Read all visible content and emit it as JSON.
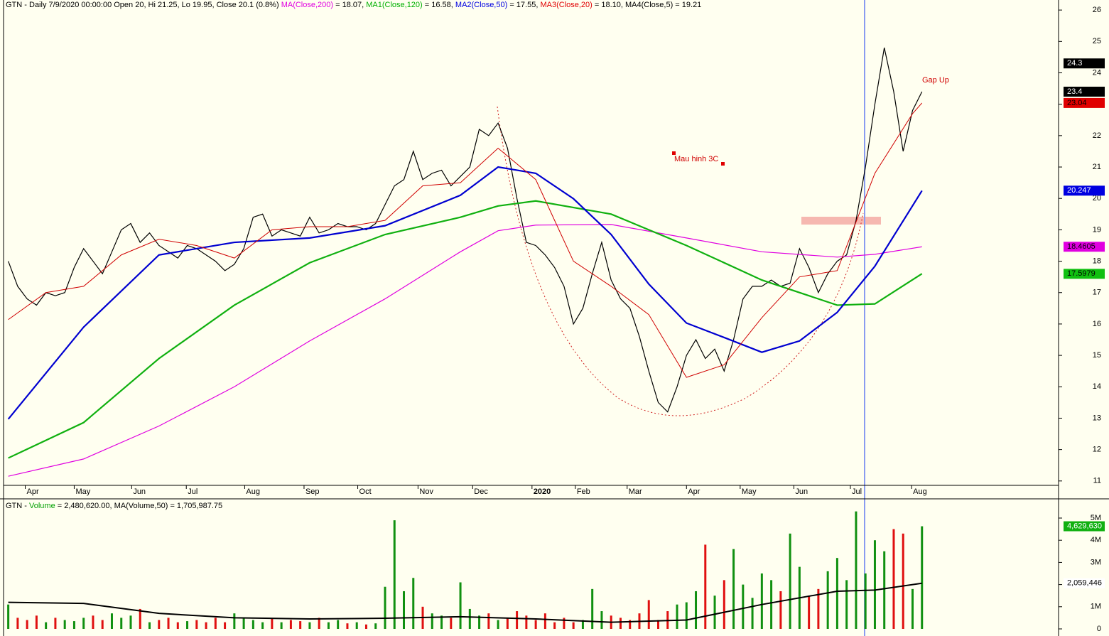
{
  "chart_data": [
    {
      "type": "line",
      "header": [
        {
          "text": "GTN - Daily 7/9/2020 00:00:00 Open 20, Hi 21.25, Lo 19.95, Close 20.1 (0.8%) ",
          "color": "#000000"
        },
        {
          "text": "MA(Close,200)",
          "color": "#e000e0"
        },
        {
          "text": " = 18.07, ",
          "color": "#000000"
        },
        {
          "text": "MA1(Close,120)",
          "color": "#00b000"
        },
        {
          "text": " = 16.58, ",
          "color": "#000000"
        },
        {
          "text": "MA2(Close,50)",
          "color": "#0000e0"
        },
        {
          "text": " = 17.55, ",
          "color": "#000000"
        },
        {
          "text": "MA3(Close,20)",
          "color": "#e00000"
        },
        {
          "text": " = 18.10, ",
          "color": "#000000"
        },
        {
          "text": "MA4(Close,5) = 19.21",
          "color": "#000000"
        }
      ],
      "annotations": [
        "Mau hinh 3C",
        "Gap Up"
      ],
      "xlim": [
        -0.5,
        111.5
      ],
      "xticks": [
        {
          "value": 1.8,
          "label": "Apr"
        },
        {
          "value": 7.0,
          "label": "May"
        },
        {
          "value": 13.1,
          "label": "Jun"
        },
        {
          "value": 18.9,
          "label": "Jul"
        },
        {
          "value": 25.1,
          "label": "Aug"
        },
        {
          "value": 31.4,
          "label": "Sep"
        },
        {
          "value": 37.1,
          "label": "Oct"
        },
        {
          "value": 43.5,
          "label": "Nov"
        },
        {
          "value": 49.3,
          "label": "Dec"
        },
        {
          "value": 55.6,
          "label": "2020"
        },
        {
          "value": 60.2,
          "label": "Feb"
        },
        {
          "value": 65.7,
          "label": "Mar"
        },
        {
          "value": 72.0,
          "label": "Apr"
        },
        {
          "value": 77.7,
          "label": "May"
        },
        {
          "value": 83.4,
          "label": "Jun"
        },
        {
          "value": 89.4,
          "label": "Jul"
        },
        {
          "value": 95.9,
          "label": "Aug"
        }
      ],
      "ylim": [
        10.86,
        26.32
      ],
      "yticks": [
        11,
        12,
        13,
        14,
        15,
        16,
        17,
        18,
        19,
        20,
        21,
        22,
        23,
        24,
        25,
        26
      ],
      "series": [
        {
          "color": "#000000",
          "width": 1.2,
          "x": [
            0,
            1,
            2,
            3,
            4,
            5,
            6,
            7,
            8,
            9,
            10,
            11,
            12,
            13,
            14,
            15,
            16,
            17,
            18,
            19,
            20,
            21,
            22,
            23,
            24,
            25,
            26,
            27,
            28,
            29,
            30,
            31,
            32,
            33,
            34,
            35,
            36,
            37,
            38,
            39,
            40,
            41,
            42,
            43,
            44,
            45,
            46,
            47,
            48,
            49,
            50,
            51,
            52,
            53,
            54,
            55,
            56,
            57,
            58,
            59,
            60,
            61,
            62,
            63,
            64,
            65,
            66,
            67,
            68,
            69,
            70,
            71,
            72,
            73,
            74,
            75,
            76,
            77,
            78,
            79,
            80,
            81,
            82,
            83,
            84,
            85,
            86,
            87,
            88,
            89,
            90,
            91,
            92,
            93,
            94,
            95,
            96,
            97
          ],
          "values": [
            18.0,
            17.2,
            16.8,
            16.6,
            17.0,
            16.9,
            17.0,
            17.8,
            18.4,
            18.0,
            17.6,
            18.3,
            19.0,
            19.2,
            18.6,
            18.9,
            18.5,
            18.3,
            18.1,
            18.5,
            18.4,
            18.2,
            18.0,
            17.7,
            17.9,
            18.4,
            19.4,
            19.5,
            18.8,
            19.0,
            18.9,
            18.8,
            19.4,
            18.9,
            19.0,
            19.2,
            19.1,
            19.1,
            19.0,
            19.2,
            19.8,
            20.4,
            20.6,
            21.5,
            20.6,
            20.8,
            20.9,
            20.4,
            20.7,
            21.0,
            22.2,
            22.0,
            22.4,
            21.6,
            20.0,
            18.6,
            18.5,
            18.2,
            17.8,
            17.2,
            16.0,
            16.5,
            17.6,
            18.6,
            17.4,
            16.8,
            16.5,
            15.6,
            14.5,
            13.5,
            13.2,
            14.0,
            15.0,
            15.5,
            14.9,
            15.2,
            14.5,
            15.5,
            16.8,
            17.2,
            17.2,
            17.4,
            17.2,
            17.3,
            18.4,
            17.8,
            17.0,
            17.6,
            18.0,
            18.2,
            19.3,
            21.0,
            23.0,
            24.8,
            23.4,
            21.5,
            22.8,
            23.4
          ]
        },
        {
          "color": "#e000e0",
          "width": 1.2,
          "x": [
            0,
            8,
            16,
            24,
            32,
            40,
            48,
            52,
            56,
            64,
            72,
            80,
            88,
            92,
            97
          ],
          "values": [
            11.15,
            11.7,
            12.75,
            14.0,
            15.46,
            16.8,
            18.3,
            18.97,
            19.15,
            19.17,
            18.74,
            18.3,
            18.13,
            18.22,
            18.46
          ]
        },
        {
          "color": "#10b010",
          "width": 2.2,
          "x": [
            0,
            8,
            16,
            24,
            32,
            40,
            48,
            52,
            56,
            64,
            72,
            80,
            88,
            92,
            97
          ],
          "values": [
            11.73,
            12.86,
            14.9,
            16.6,
            17.95,
            18.85,
            19.4,
            19.76,
            19.92,
            19.5,
            18.5,
            17.4,
            16.6,
            16.64,
            17.6
          ]
        },
        {
          "color": "#0000d0",
          "width": 2.2,
          "x": [
            0,
            8,
            16,
            24,
            32,
            40,
            48,
            52,
            56,
            60,
            64,
            68,
            72,
            76,
            80,
            84,
            88,
            92,
            97
          ],
          "values": [
            12.97,
            15.9,
            18.2,
            18.6,
            18.74,
            19.13,
            20.1,
            21.0,
            20.8,
            19.99,
            18.85,
            17.27,
            16.03,
            15.57,
            15.1,
            15.46,
            16.37,
            17.84,
            20.247
          ]
        },
        {
          "color": "#d00000",
          "width": 1,
          "x": [
            0,
            4,
            8,
            12,
            16,
            20,
            24,
            28,
            32,
            36,
            40,
            44,
            48,
            52,
            56,
            60,
            64,
            68,
            72,
            76,
            80,
            84,
            88,
            92,
            96,
            97
          ],
          "values": [
            16.14,
            17.0,
            17.2,
            18.2,
            18.7,
            18.5,
            18.1,
            19.0,
            19.1,
            19.1,
            19.3,
            20.4,
            20.5,
            21.6,
            20.6,
            18.0,
            17.2,
            16.3,
            14.3,
            14.7,
            16.2,
            17.5,
            17.7,
            20.8,
            22.7,
            23.04
          ]
        }
      ],
      "last_values": [
        {
          "value": 24.3,
          "color": "#000000",
          "text_color": "#ffffff"
        },
        {
          "value": 23.4,
          "color": "#000000",
          "text_color": "#ffffff"
        },
        {
          "value": 23.04,
          "color": "#e00000",
          "text_color": "#000000"
        },
        {
          "value": 20.247,
          "color": "#0000e0",
          "text_color": "#ffffff"
        },
        {
          "value": 18.4605,
          "color": "#e000e0",
          "text_color": "#000000"
        },
        {
          "value": 17.5979,
          "color": "#10c010",
          "text_color": "#000000"
        }
      ]
    },
    {
      "type": "bar",
      "header": [
        {
          "text": "GTN - ",
          "color": "#000000"
        },
        {
          "text": "Volume",
          "color": "#00a000"
        },
        {
          "text": " = 2,480,620.00, MA(Volume,50) = 1,705,987.75",
          "color": "#000000"
        }
      ],
      "xlim": [
        -0.5,
        111.5
      ],
      "ylim": [
        -96000,
        5770000
      ],
      "yticks": [
        0,
        {
          "value": 1000000,
          "label": "1M"
        },
        {
          "value": 2000000,
          "label": "2M"
        },
        {
          "value": 3000000,
          "label": "3M"
        },
        {
          "value": 4000000,
          "label": "4M"
        },
        {
          "value": 5000000,
          "label": "5M"
        }
      ],
      "up_color": "#109010",
      "down_color": "#e01010",
      "values": [
        1100000,
        500000,
        400000,
        600000,
        300000,
        500000,
        400000,
        350000,
        500000,
        600000,
        400000,
        700000,
        500000,
        600000,
        900000,
        300000,
        400000,
        500000,
        300000,
        350000,
        400000,
        300000,
        500000,
        300000,
        700000,
        500000,
        400000,
        300000,
        450000,
        300000,
        400000,
        350000,
        300000,
        500000,
        300000,
        400000,
        250000,
        300000,
        200000,
        250000,
        1900000,
        4900000,
        1700000,
        2300000,
        1000000,
        700000,
        600000,
        500000,
        2100000,
        900000,
        600000,
        700000,
        400000,
        500000,
        800000,
        600000,
        400000,
        700000,
        300000,
        500000,
        300000,
        400000,
        1800000,
        800000,
        600000,
        500000,
        400000,
        700000,
        1300000,
        400000,
        800000,
        1100000,
        1200000,
        1700000,
        3800000,
        1500000,
        2200000,
        3600000,
        2000000,
        1400000,
        2500000,
        2200000,
        1700000,
        4300000,
        2800000,
        1500000,
        1800000,
        2600000,
        3200000,
        2200000,
        5300000,
        2500000,
        4000000,
        3500000,
        4500000,
        4300000,
        1800000,
        4629630
      ],
      "ma": {
        "color": "#000000",
        "x": [
          0,
          8,
          16,
          24,
          32,
          40,
          48,
          56,
          64,
          72,
          80,
          88,
          92,
          97
        ],
        "values": [
          1200000,
          1150000,
          700000,
          500000,
          450000,
          480000,
          550000,
          450000,
          300000,
          400000,
          1100000,
          1700000,
          1750000,
          2059446
        ]
      },
      "last_values": [
        {
          "value": 4629630,
          "label": "4,629,630",
          "color": "#10b010",
          "text_color": "#ffffff"
        },
        {
          "value": 2059446,
          "label": "2,059,446",
          "color": "#ffffff",
          "text_color": "#000000"
        }
      ]
    }
  ]
}
